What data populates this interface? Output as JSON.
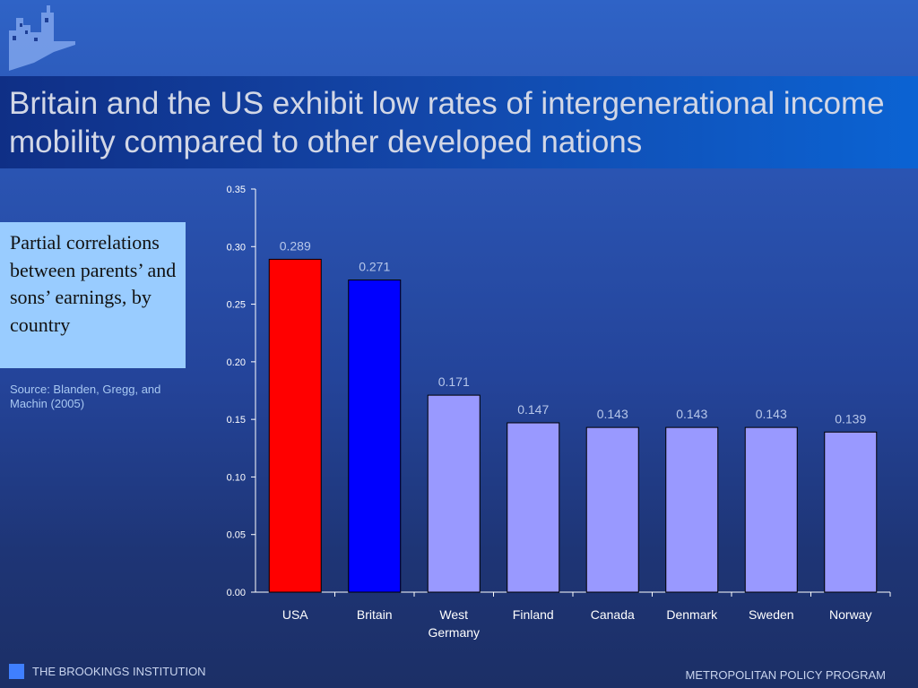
{
  "title": "Britain and the US exhibit low rates of intergenerational income mobility compared to other developed nations",
  "description": "Partial correlations between parents’ and sons’ earnings, by country",
  "source": "Source: Blanden, Gregg, and Machin (2005)",
  "footer": {
    "left": "THE BROOKINGS INSTITUTION",
    "right": "METROPOLITAN POLICY PROGRAM"
  },
  "colors": {
    "usa": "#ff0000",
    "britain": "#0000ff",
    "others": "#9999ff",
    "axis": "#ffffff",
    "data_label": "#b7c7ea",
    "footer_square": "#3f7fff"
  },
  "chart_data": {
    "type": "bar",
    "categories": [
      "USA",
      "Britain",
      "West Germany",
      "Finland",
      "Canada",
      "Denmark",
      "Sweden",
      "Norway"
    ],
    "category_lines": [
      [
        "USA"
      ],
      [
        "Britain"
      ],
      [
        "West",
        "Germany"
      ],
      [
        "Finland"
      ],
      [
        "Canada"
      ],
      [
        "Denmark"
      ],
      [
        "Sweden"
      ],
      [
        "Norway"
      ]
    ],
    "values": [
      0.289,
      0.271,
      0.171,
      0.147,
      0.143,
      0.143,
      0.143,
      0.139
    ],
    "value_labels": [
      "0.289",
      "0.271",
      "0.171",
      "0.147",
      "0.143",
      "0.143",
      "0.143",
      "0.139"
    ],
    "bar_colors": [
      "#ff0000",
      "#0000ff",
      "#9999ff",
      "#9999ff",
      "#9999ff",
      "#9999ff",
      "#9999ff",
      "#9999ff"
    ],
    "yticks": [
      "0.00",
      "0.05",
      "0.10",
      "0.15",
      "0.20",
      "0.25",
      "0.30",
      "0.35"
    ],
    "ylim": [
      0,
      0.35
    ],
    "title": "",
    "xlabel": "",
    "ylabel": "",
    "grid": false,
    "legend": "none"
  }
}
